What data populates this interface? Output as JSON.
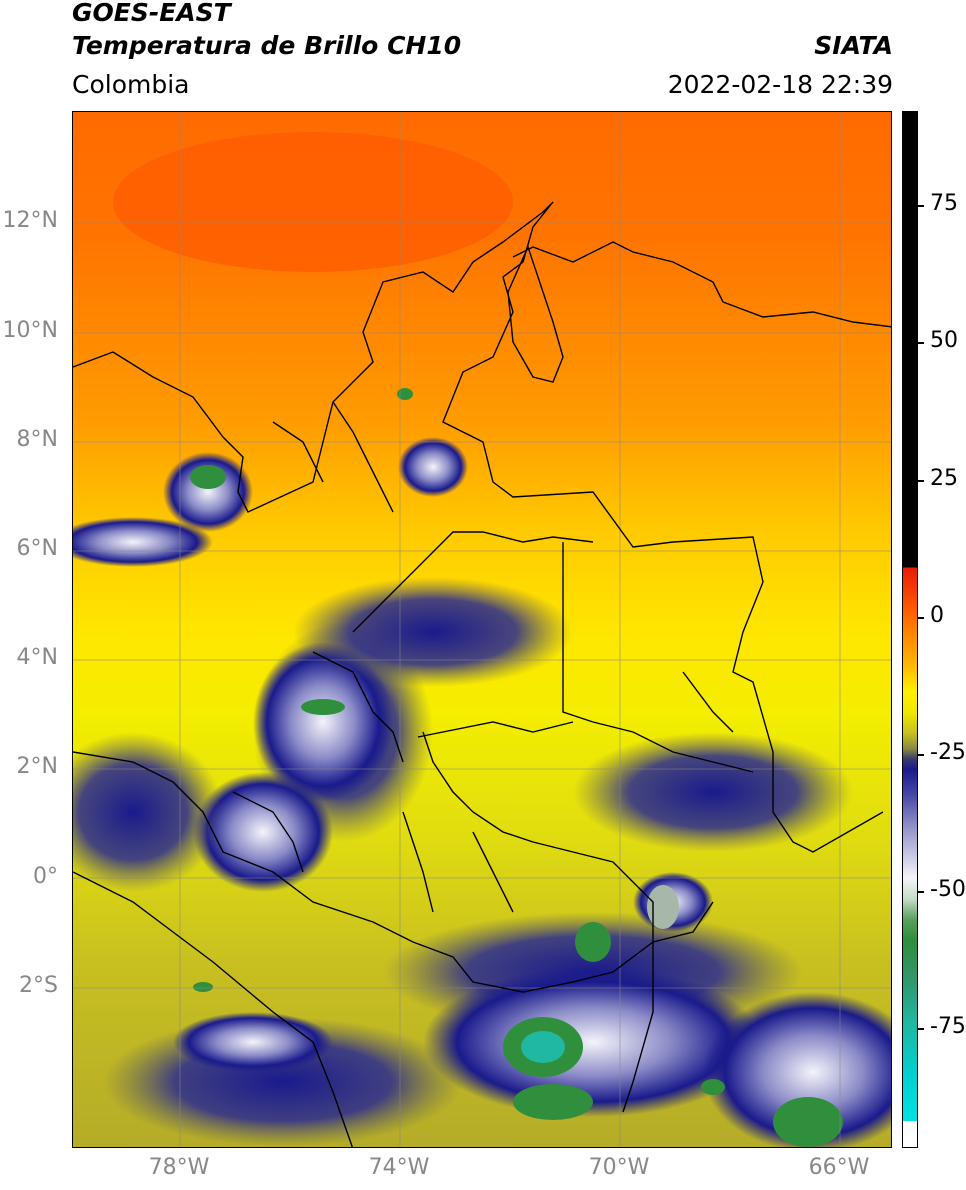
{
  "header": {
    "satellite": "GOES-EAST",
    "product": "Temperatura de Brillo CH10",
    "region": "Colombia",
    "agency": "SIATA",
    "timestamp": "2022-02-18 22:39"
  },
  "map": {
    "lat_ticks": [
      "12°N",
      "10°N",
      "8°N",
      "6°N",
      "4°N",
      "2°N",
      "0°",
      "2°S"
    ],
    "lon_ticks": [
      "78°W",
      "74°W",
      "70°W",
      "66°W"
    ],
    "grid": true
  },
  "colorbar": {
    "ticks": [
      "75",
      "50",
      "25",
      "0",
      "-25",
      "-50",
      "-75"
    ],
    "colors": {
      "very_warm": "#000000",
      "warm_red": "#e81c0a",
      "orange": "#ff7f00",
      "yellow": "#ffee00",
      "olive": "#c8c020",
      "navy": "#1a1a8c",
      "white": "#f4f4fa",
      "green": "#2f8f3c",
      "teal": "#20b8a0",
      "cyan": "#00e0e0"
    }
  }
}
